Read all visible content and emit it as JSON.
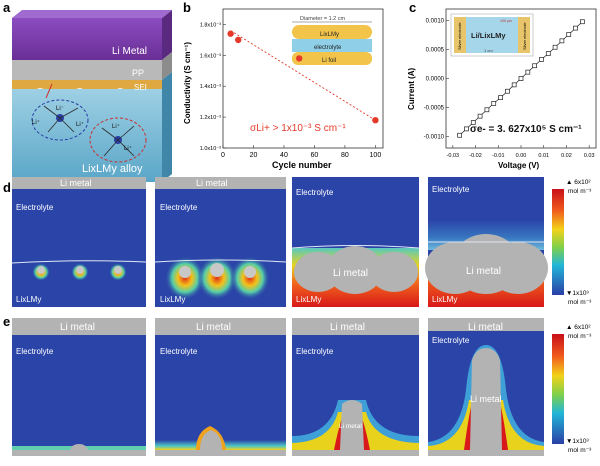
{
  "panel_a": {
    "letter": "a",
    "li_metal": "Li Metal",
    "pp": "PP",
    "sei": "SEI",
    "alloy": "LixLMy alloy",
    "li_minus": "Li⁻",
    "li_plus": "Li⁺"
  },
  "panel_b": {
    "letter": "b",
    "ylabel": "Conductivity (S cm⁻¹)",
    "xlabel": "Cycle number",
    "inset": {
      "diameter": "Diameter = 1.2 cm",
      "top_layer": "LixLMy",
      "middle_layer": "electrolyte",
      "bottom_layer": "Li foil"
    },
    "annotation": "σLi+ > 1x10⁻³ S cm⁻¹"
  },
  "panel_c": {
    "letter": "c",
    "ylabel": "Current (A)",
    "xlabel": "Voltage (V)",
    "inset": {
      "left_electrode": "Silver electrode",
      "center": "Li/LixLMy",
      "right_electrode": "Silver electrode",
      "width": "1 cm",
      "height": "100 μm"
    },
    "annotation": "σe- = 3. 627x10⁵ S cm⁻¹"
  },
  "panel_d": {
    "letter": "d",
    "frames": [
      {
        "top": "Li metal",
        "electrolyte": "Electrolyte",
        "bottom": "LixLMy",
        "center": ""
      },
      {
        "top": "Li metal",
        "electrolyte": "Electrolyte",
        "bottom": "LixLMy",
        "center": ""
      },
      {
        "top": "",
        "electrolyte": "Electrolyte",
        "bottom": "LixLMy",
        "center": "Li metal"
      },
      {
        "top": "",
        "electrolyte": "Electrolyte",
        "bottom": "LixLMy",
        "center": "Li metal"
      }
    ],
    "colorbar": {
      "max": "▲ 6x10²",
      "max_unit": "mol m⁻³",
      "min": "▼1x10³",
      "min_unit": "mol m⁻³"
    }
  },
  "panel_e": {
    "letter": "e",
    "frames": [
      {
        "top": "Li metal",
        "electrolyte": "Electrolyte",
        "center": ""
      },
      {
        "top": "Li metal",
        "electrolyte": "Electrolyte",
        "center": ""
      },
      {
        "top": "Li metal",
        "electrolyte": "Electrolyte",
        "center": "Li metal"
      },
      {
        "top": "Li metal",
        "electrolyte": "Electrolyte",
        "center": "Li metal"
      }
    ],
    "colorbar": {
      "max": "▲ 6x10²",
      "max_unit": "mol m⁻³",
      "min": "▼1x10³",
      "min_unit": "mol m⁻³"
    }
  },
  "colors": {
    "electrolyte": "#2a44a8",
    "li_metal": "#b3b3b3",
    "red_marker": "#e53a2a",
    "alloy_top": "#7a3fa0"
  },
  "chart_data": [
    {
      "type": "scatter",
      "panel": "b",
      "xlabel": "Cycle number",
      "ylabel": "Conductivity (S cm⁻¹)",
      "xlim": [
        0,
        105
      ],
      "ylim": [
        0.001,
        0.0019
      ],
      "x_ticks": [
        0,
        20,
        40,
        60,
        80,
        100
      ],
      "y_ticks": [
        0.001,
        0.0012,
        0.0014,
        0.0016,
        0.0018
      ],
      "y_tick_labels": [
        "1.0x10⁻³",
        "1.2x10⁻³",
        "1.4x10⁻³",
        "1.6x10⁻³",
        "1.8x10⁻³"
      ],
      "x": [
        5,
        10,
        50,
        100
      ],
      "y": [
        0.00174,
        0.0017,
        0.00158,
        0.00118
      ],
      "trend": {
        "x": [
          5,
          100
        ],
        "y": [
          0.00176,
          0.00118
        ],
        "style": "dashed"
      }
    },
    {
      "type": "line",
      "panel": "c",
      "xlabel": "Voltage (V)",
      "ylabel": "Current (A)",
      "xlim": [
        -0.033,
        0.033
      ],
      "ylim": [
        -0.0012,
        0.0012
      ],
      "x_ticks": [
        -0.03,
        -0.02,
        -0.01,
        0.0,
        0.01,
        0.02,
        0.03
      ],
      "x_tick_labels": [
        "-0.03",
        "-0.02",
        "-0.01",
        "0.00",
        "0.01",
        "0.02",
        "0.03"
      ],
      "y_ticks": [
        -0.001,
        -0.0005,
        0.0,
        0.0005,
        0.001
      ],
      "y_tick_labels": [
        "-0.0010",
        "-0.0005",
        "0.0000",
        "0.0005",
        "0.0010"
      ],
      "x": [
        -0.027,
        -0.024,
        -0.021,
        -0.018,
        -0.015,
        -0.012,
        -0.009,
        -0.006,
        -0.003,
        0.0,
        0.003,
        0.006,
        0.009,
        0.012,
        0.015,
        0.018,
        0.021,
        0.024,
        0.027
      ],
      "y": [
        -0.00098,
        -0.00087,
        -0.00076,
        -0.00065,
        -0.00054,
        -0.00043,
        -0.00033,
        -0.00022,
        -0.00011,
        0.0,
        0.00011,
        0.00022,
        0.00033,
        0.00043,
        0.00054,
        0.00065,
        0.00076,
        0.00087,
        0.00098
      ],
      "marker": "open-square"
    }
  ]
}
